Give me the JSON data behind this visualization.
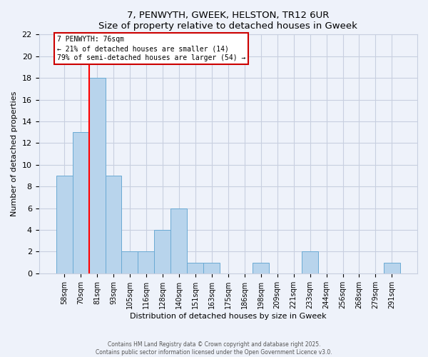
{
  "title": "7, PENWYTH, GWEEK, HELSTON, TR12 6UR",
  "subtitle": "Size of property relative to detached houses in Gweek",
  "xlabel": "Distribution of detached houses by size in Gweek",
  "ylabel": "Number of detached properties",
  "categories": [
    "58sqm",
    "70sqm",
    "81sqm",
    "93sqm",
    "105sqm",
    "116sqm",
    "128sqm",
    "140sqm",
    "151sqm",
    "163sqm",
    "175sqm",
    "186sqm",
    "198sqm",
    "209sqm",
    "221sqm",
    "233sqm",
    "244sqm",
    "256sqm",
    "268sqm",
    "279sqm",
    "291sqm"
  ],
  "values": [
    9,
    13,
    18,
    9,
    2,
    2,
    4,
    6,
    1,
    1,
    0,
    0,
    1,
    0,
    0,
    2,
    0,
    0,
    0,
    0,
    1
  ],
  "bar_color": "#b8d4ec",
  "bar_edge_color": "#6aaad4",
  "ylim": [
    0,
    22
  ],
  "yticks": [
    0,
    2,
    4,
    6,
    8,
    10,
    12,
    14,
    16,
    18,
    20,
    22
  ],
  "red_line_x": 1.5,
  "annotation_line1": "7 PENWYTH: 76sqm",
  "annotation_line2": "← 21% of detached houses are smaller (14)",
  "annotation_line3": "79% of semi-detached houses are larger (54) →",
  "annotation_box_color": "#ffffff",
  "annotation_box_edge_color": "#cc0000",
  "footer1": "Contains HM Land Registry data © Crown copyright and database right 2025.",
  "footer2": "Contains public sector information licensed under the Open Government Licence v3.0.",
  "bg_color": "#eef2fa",
  "plot_bg_color": "#eef2fa",
  "grid_color": "#c8cfe0"
}
